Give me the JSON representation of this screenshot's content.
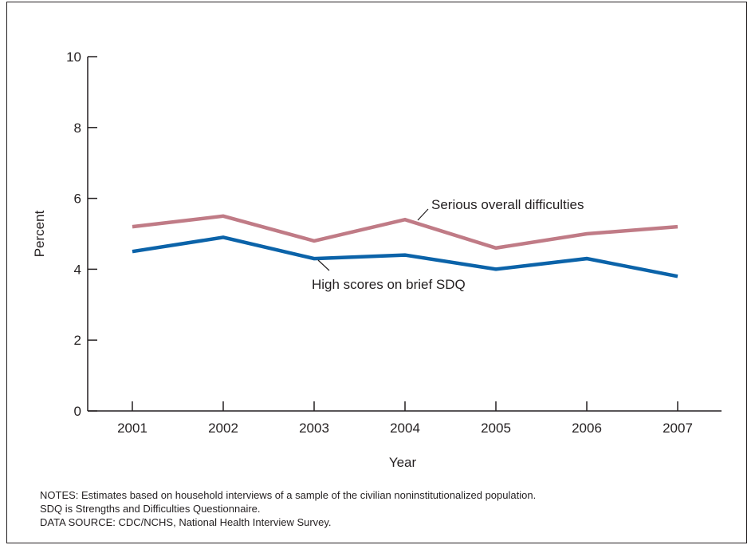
{
  "chart_data": {
    "type": "line",
    "title": "",
    "xlabel": "Year",
    "ylabel": "Percent",
    "x": [
      "2001",
      "2002",
      "2003",
      "2004",
      "2005",
      "2006",
      "2007"
    ],
    "ylim": [
      0,
      10
    ],
    "yticks": [
      "0",
      "2",
      "4",
      "6",
      "8",
      "10"
    ],
    "grid": false,
    "series": [
      {
        "name": "Serious overall difficulties",
        "color": "#c07b86",
        "values": [
          5.2,
          5.5,
          4.8,
          5.4,
          4.6,
          5.0,
          5.2
        ]
      },
      {
        "name": "High scores on brief SDQ",
        "color": "#0b63a9",
        "values": [
          4.5,
          4.9,
          4.3,
          4.4,
          4.0,
          4.3,
          3.8
        ]
      }
    ]
  },
  "notes": {
    "line1": "NOTES: Estimates based on household interviews of a sample of the civilian noninstitutionalized population.",
    "line2": "SDQ is Strengths and Difficulties Questionnaire.",
    "line3": "DATA SOURCE: CDC/NCHS, National Health Interview Survey."
  }
}
